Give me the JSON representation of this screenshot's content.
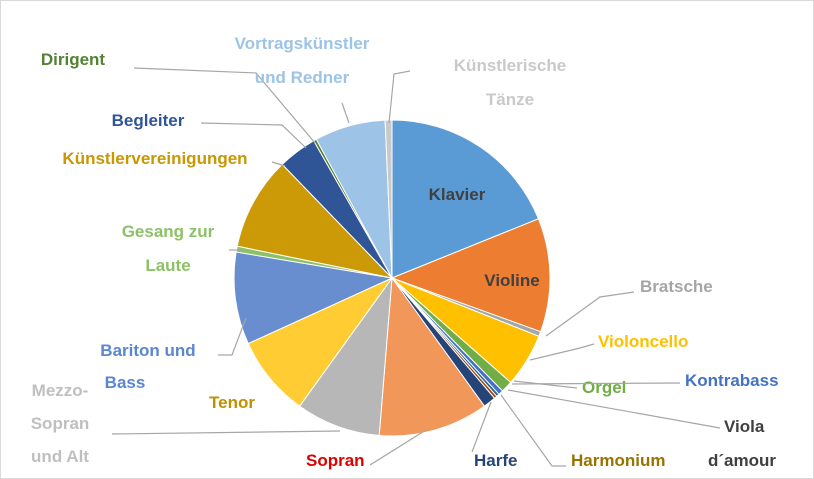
{
  "chart_data": {
    "type": "pie",
    "categories": [
      "Klavier",
      "Violine",
      "Bratsche",
      "Violoncello",
      "Orgel",
      "Kontrabass",
      "Viola\nd´amour",
      "Harmonium",
      "Harfe",
      "Sopran",
      "Mezzo-\nSopran\nund Alt",
      "Tenor",
      "Bariton und\nBass",
      "Gesang zur\nLaute",
      "Künstlervereinigungen",
      "Begleiter",
      "Dirigent",
      "Vortragskünstler\nund Redner",
      "Künstlerische\nTänze"
    ],
    "values": [
      19,
      11.7,
      0.5,
      5.5,
      1.2,
      0.5,
      0.3,
      0.3,
      1.3,
      11.3,
      8.7,
      8.3,
      9.5,
      0.6,
      9.6,
      4,
      0.3,
      7.3,
      0.7
    ],
    "colors": [
      "#5b9bd5",
      "#ed7d31",
      "#a5a5a5",
      "#ffc000",
      "#70ad47",
      "#4472c4",
      "#255e91",
      "#9e480e",
      "#264478",
      "#f1975a",
      "#b7b7b7",
      "#ffcd33",
      "#698ed0",
      "#8cc168",
      "#cc9a06",
      "#2f5597",
      "#548235",
      "#9dc3e6",
      "#c9c9c9"
    ],
    "label_colors": [
      "#404040",
      "#404040",
      "#a5a5a5",
      "#ffc000",
      "#70ad47",
      "#4472c4",
      "#404040",
      "#997300",
      "#264478",
      "#e00000",
      "#bfbfbf",
      "#bf9000",
      "#5b86d0",
      "#8cc168",
      "#c99700",
      "#2f5597",
      "#548235",
      "#9dc3e6",
      "#c9c9c9"
    ]
  }
}
